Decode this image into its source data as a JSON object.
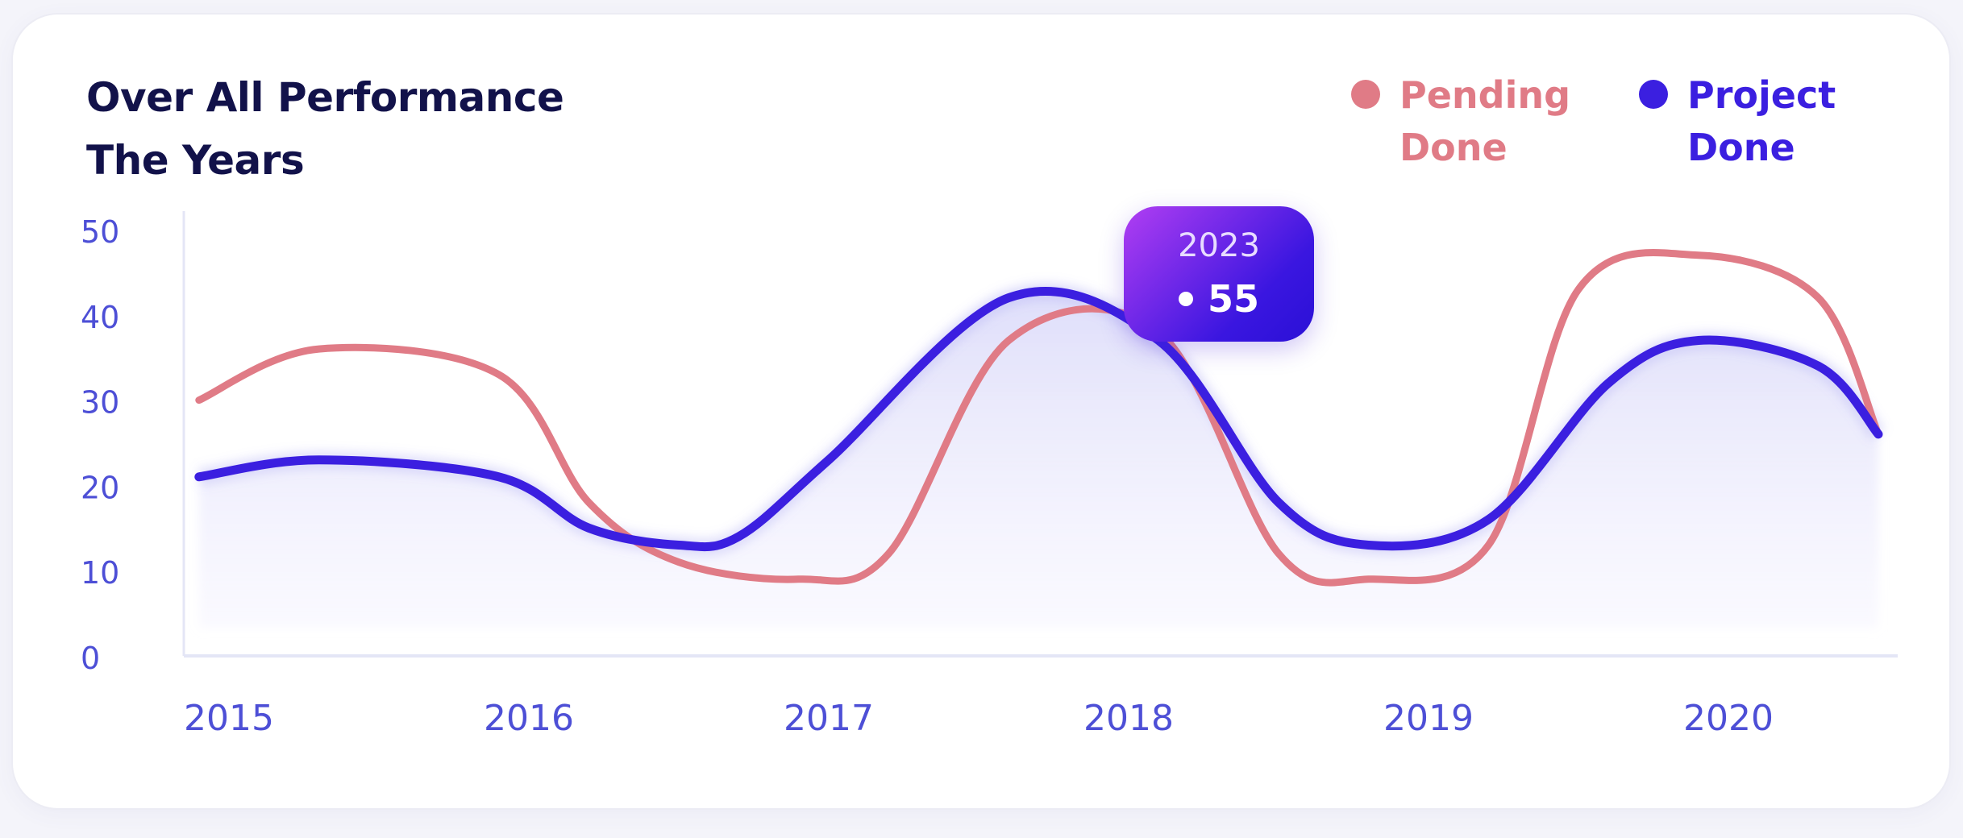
{
  "card": {
    "title": "Over  All Performance\nThe Years"
  },
  "legend": [
    {
      "label": "Pending\nDone",
      "color": "#e07b86"
    },
    {
      "label": "Project\nDone",
      "color": "#3b1fe0"
    }
  ],
  "tooltip": {
    "year": "2023",
    "value": "55"
  },
  "chart_data": {
    "type": "line",
    "x": [
      2015,
      2016,
      2017,
      2018,
      2019,
      2020
    ],
    "ylim": [
      0,
      50
    ],
    "yticks": [
      0,
      10,
      20,
      30,
      40,
      50
    ],
    "grid": false,
    "legend_position": "top-right",
    "series": [
      {
        "name": "Pending Done",
        "color": "#e07b86",
        "points": [
          [
            2014.9,
            30
          ],
          [
            2015.3,
            36
          ],
          [
            2015.9,
            33
          ],
          [
            2016.2,
            18
          ],
          [
            2016.5,
            11
          ],
          [
            2016.9,
            9
          ],
          [
            2017.2,
            12
          ],
          [
            2017.6,
            37
          ],
          [
            2018.1,
            38
          ],
          [
            2018.5,
            12
          ],
          [
            2018.8,
            9
          ],
          [
            2019.2,
            13
          ],
          [
            2019.5,
            43
          ],
          [
            2019.9,
            47
          ],
          [
            2020.3,
            42
          ],
          [
            2020.5,
            26
          ]
        ]
      },
      {
        "name": "Project Done",
        "color": "#3b1fe0",
        "fill": true,
        "points": [
          [
            2014.9,
            21
          ],
          [
            2015.3,
            23
          ],
          [
            2015.9,
            21
          ],
          [
            2016.2,
            15
          ],
          [
            2016.5,
            13
          ],
          [
            2016.7,
            14
          ],
          [
            2017.0,
            23
          ],
          [
            2017.6,
            42
          ],
          [
            2018.1,
            37
          ],
          [
            2018.5,
            18
          ],
          [
            2018.8,
            13
          ],
          [
            2019.2,
            16
          ],
          [
            2019.6,
            32
          ],
          [
            2019.9,
            37
          ],
          [
            2020.3,
            34
          ],
          [
            2020.5,
            26
          ]
        ]
      }
    ]
  }
}
